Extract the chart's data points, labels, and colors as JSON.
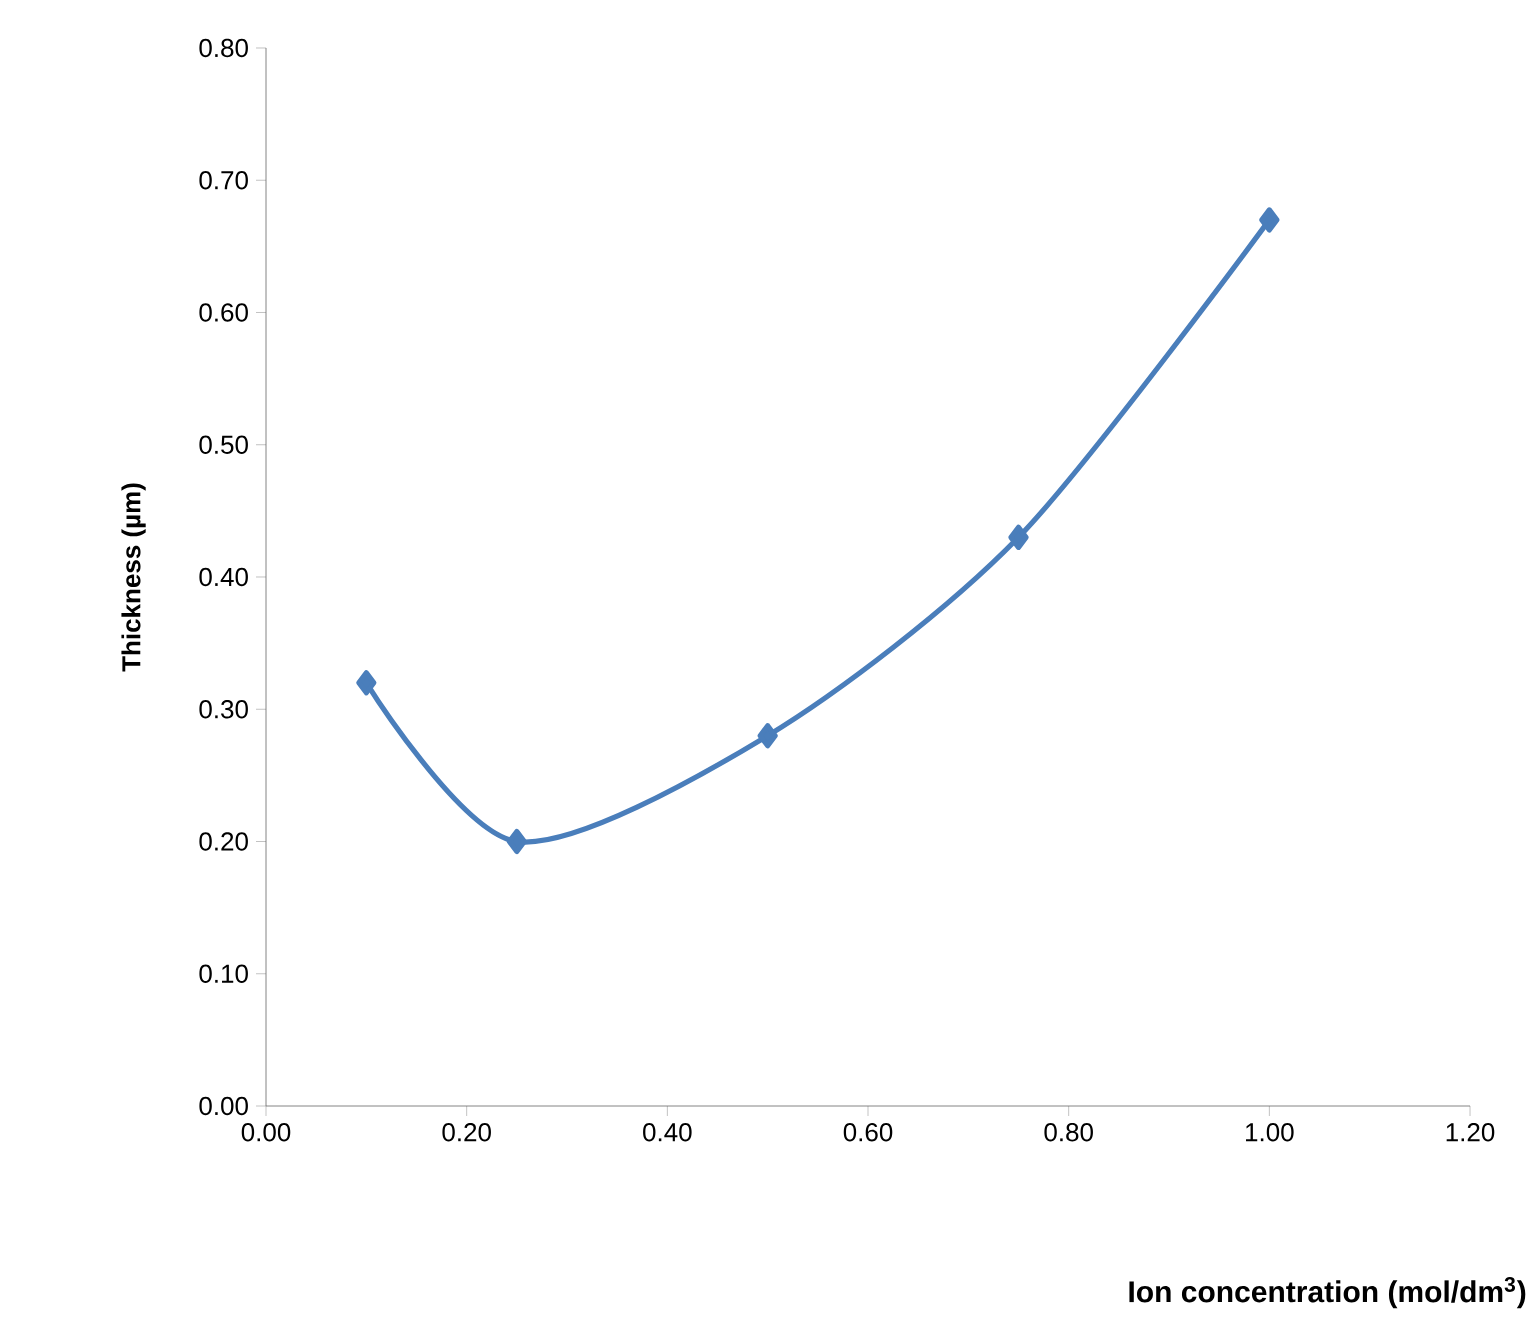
{
  "chart_data": {
    "type": "line",
    "xlabel": "Ion concentration (mol/dm$^{3}$)",
    "ylabel": "Thickness (µm)",
    "x": [
      0.1,
      0.25,
      0.5,
      0.75,
      1.0
    ],
    "series": [
      {
        "color": "#4a7ebb",
        "values": [
          0.32,
          0.2,
          0.28,
          0.43,
          0.67
        ]
      }
    ],
    "marker": "diamond",
    "line_style": "solid",
    "xlim": [
      0,
      1.2
    ],
    "ylim": [
      0,
      0.8
    ],
    "xticks": [
      {
        "value": 0,
        "label": "0.00"
      },
      {
        "value": 0.2,
        "label": "0.20"
      },
      {
        "value": 0.4,
        "label": "0.40"
      },
      {
        "value": 0.6,
        "label": "0.60"
      },
      {
        "value": 0.8,
        "label": "0.80"
      },
      {
        "value": 1.0,
        "label": "1.00"
      },
      {
        "value": 1.2,
        "label": "1.20"
      }
    ],
    "yticks": [
      {
        "value": 0,
        "label": "0.00"
      },
      {
        "value": 0.1,
        "label": "0.10"
      },
      {
        "value": 0.2,
        "label": "0.20"
      },
      {
        "value": 0.3,
        "label": "0.30"
      },
      {
        "value": 0.4,
        "label": "0.40"
      },
      {
        "value": 0.5,
        "label": "0.50"
      },
      {
        "value": 0.6,
        "label": "0.60"
      },
      {
        "value": 0.7,
        "label": "0.70"
      },
      {
        "value": 0.8,
        "label": "0.80"
      }
    ]
  }
}
